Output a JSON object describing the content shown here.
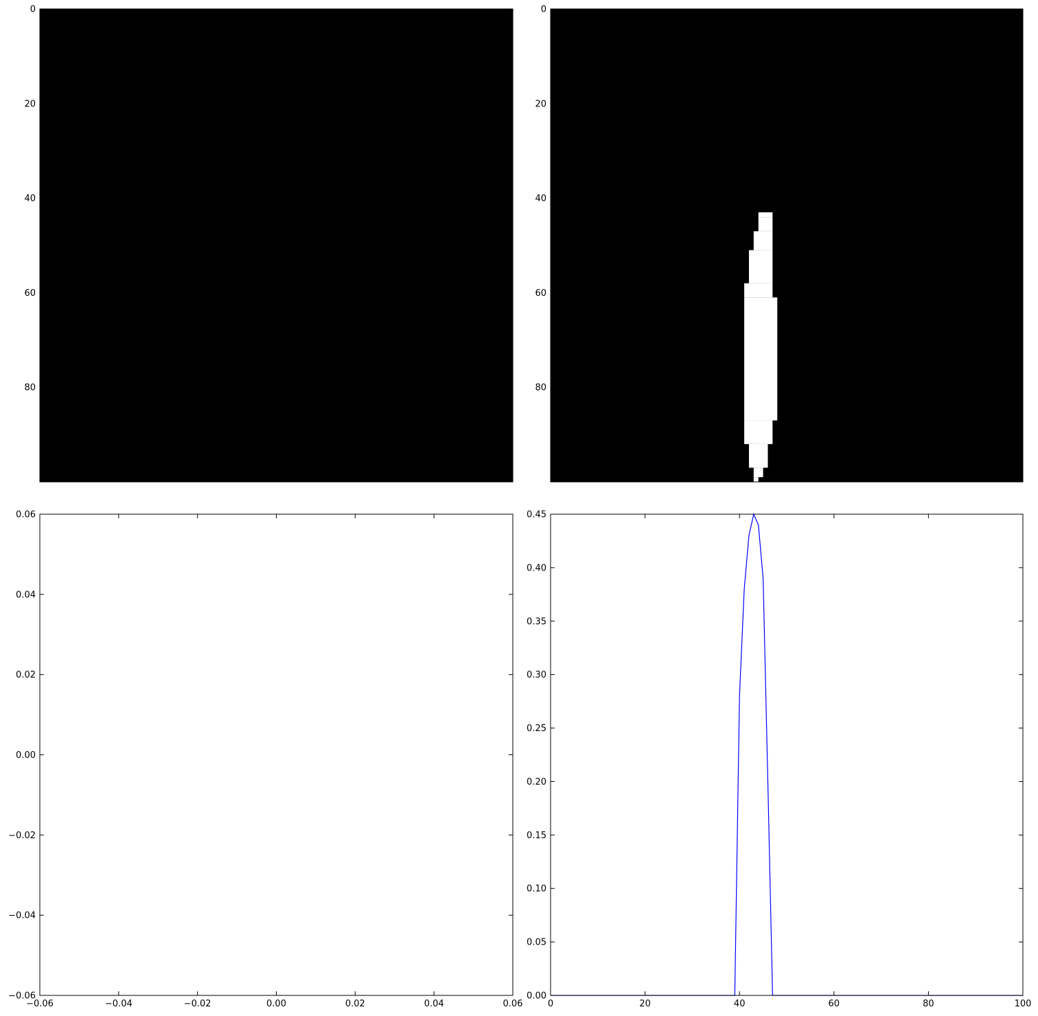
{
  "chart_data": [
    {
      "panel": "top-left",
      "type": "heatmap",
      "image": {
        "rows": 100,
        "cols": 100,
        "cmap": "gray",
        "background": 0,
        "foreground_runs": []
      },
      "xlim": [
        0,
        100
      ],
      "ylim": [
        100,
        0
      ],
      "x_ticks": [],
      "y_ticks": [
        0,
        20,
        40,
        60,
        80
      ],
      "x_tick_labels": [],
      "y_tick_labels": [
        "0",
        "20",
        "40",
        "60",
        "80"
      ],
      "grid": false
    },
    {
      "panel": "top-right",
      "type": "heatmap",
      "image": {
        "rows": 100,
        "cols": 100,
        "cmap": "gray",
        "background": 0,
        "foreground_note_rows_cols": "white runs per row band",
        "foreground_runs": [
          {
            "rows": [
              43,
              44
            ],
            "cols": [
              44,
              47
            ]
          },
          {
            "rows": [
              44,
              47
            ],
            "cols": [
              44,
              47
            ]
          },
          {
            "rows": [
              47,
              51
            ],
            "cols": [
              43,
              47
            ]
          },
          {
            "rows": [
              51,
              58
            ],
            "cols": [
              42,
              47
            ]
          },
          {
            "rows": [
              58,
              61
            ],
            "cols": [
              41,
              47
            ]
          },
          {
            "rows": [
              61,
              87
            ],
            "cols": [
              41,
              48
            ]
          },
          {
            "rows": [
              87,
              92
            ],
            "cols": [
              41,
              47
            ]
          },
          {
            "rows": [
              92,
              97
            ],
            "cols": [
              42,
              46
            ]
          },
          {
            "rows": [
              97,
              99
            ],
            "cols": [
              43,
              45
            ]
          },
          {
            "rows": [
              99,
              100
            ],
            "cols": [
              43,
              44
            ]
          }
        ]
      },
      "xlim": [
        0,
        100
      ],
      "ylim": [
        100,
        0
      ],
      "x_ticks": [],
      "y_ticks": [
        0,
        20,
        40,
        60,
        80
      ],
      "x_tick_labels": [],
      "y_tick_labels": [
        "0",
        "20",
        "40",
        "60",
        "80"
      ],
      "grid": false
    },
    {
      "panel": "bottom-left",
      "type": "line",
      "series": [],
      "xlim": [
        -0.06,
        0.06
      ],
      "ylim": [
        -0.06,
        0.06
      ],
      "x_ticks": [
        -0.06,
        -0.04,
        -0.02,
        0.0,
        0.02,
        0.04,
        0.06
      ],
      "y_ticks": [
        -0.06,
        -0.04,
        -0.02,
        0.0,
        0.02,
        0.04,
        0.06
      ],
      "x_tick_labels": [
        "−0.06",
        "−0.04",
        "−0.02",
        "0.00",
        "0.02",
        "0.04",
        "0.06"
      ],
      "y_tick_labels": [
        "−0.06",
        "−0.04",
        "−0.02",
        "0.00",
        "0.02",
        "0.04",
        "0.06"
      ],
      "grid": false
    },
    {
      "panel": "bottom-right",
      "type": "line",
      "series": [
        {
          "color": "#0000ff",
          "x": [
            0,
            39,
            40,
            41,
            42,
            43,
            44,
            45,
            46,
            47,
            48,
            49,
            100
          ],
          "y": [
            0,
            0,
            0.28,
            0.38,
            0.43,
            0.45,
            0.44,
            0.39,
            0.2,
            0.0,
            0,
            0,
            0
          ]
        }
      ],
      "xlim": [
        0,
        100
      ],
      "ylim": [
        0,
        0.45
      ],
      "x_ticks": [
        0,
        20,
        40,
        60,
        80,
        100
      ],
      "y_ticks": [
        0.0,
        0.05,
        0.1,
        0.15,
        0.2,
        0.25,
        0.3,
        0.35,
        0.4,
        0.45
      ],
      "x_tick_labels": [
        "0",
        "20",
        "40",
        "60",
        "80",
        "100"
      ],
      "y_tick_labels": [
        "0.00",
        "0.05",
        "0.10",
        "0.15",
        "0.20",
        "0.25",
        "0.30",
        "0.35",
        "0.40",
        "0.45"
      ],
      "grid": false
    }
  ]
}
